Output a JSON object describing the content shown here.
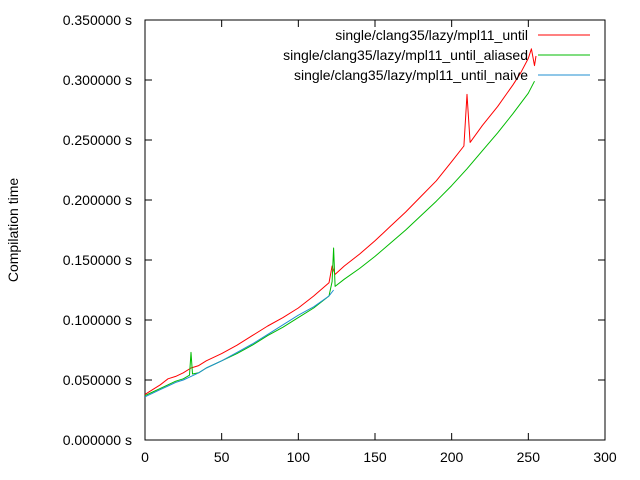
{
  "chart_data": {
    "type": "line",
    "title": "",
    "xlabel": "",
    "ylabel": "Compilation time",
    "xlim": [
      0,
      300
    ],
    "ylim": [
      0,
      0.35
    ],
    "grid": false,
    "legend_position": "top-right",
    "x_ticks": [
      "0",
      "50",
      "100",
      "150",
      "200",
      "250",
      "300"
    ],
    "y_ticks": [
      "0.000000 s",
      "0.050000 s",
      "0.100000 s",
      "0.150000 s",
      "0.200000 s",
      "0.250000 s",
      "0.300000 s",
      "0.350000 s"
    ],
    "series": [
      {
        "name": "single/clang35/lazy/mpl11_until",
        "color": "#ff0000",
        "points": [
          [
            0,
            0.038
          ],
          [
            5,
            0.042
          ],
          [
            10,
            0.046
          ],
          [
            15,
            0.051
          ],
          [
            20,
            0.053
          ],
          [
            25,
            0.056
          ],
          [
            30,
            0.06
          ],
          [
            35,
            0.062
          ],
          [
            40,
            0.066
          ],
          [
            50,
            0.072
          ],
          [
            60,
            0.079
          ],
          [
            70,
            0.087
          ],
          [
            80,
            0.095
          ],
          [
            90,
            0.102
          ],
          [
            100,
            0.11
          ],
          [
            110,
            0.12
          ],
          [
            120,
            0.131
          ],
          [
            122,
            0.145
          ],
          [
            124,
            0.138
          ],
          [
            130,
            0.145
          ],
          [
            140,
            0.155
          ],
          [
            150,
            0.166
          ],
          [
            160,
            0.178
          ],
          [
            170,
            0.19
          ],
          [
            180,
            0.203
          ],
          [
            190,
            0.216
          ],
          [
            200,
            0.232
          ],
          [
            208,
            0.245
          ],
          [
            210,
            0.288
          ],
          [
            212,
            0.248
          ],
          [
            220,
            0.262
          ],
          [
            230,
            0.278
          ],
          [
            240,
            0.296
          ],
          [
            245,
            0.306
          ],
          [
            250,
            0.318
          ],
          [
            252,
            0.326
          ],
          [
            254,
            0.312
          ],
          [
            255,
            0.32
          ]
        ]
      },
      {
        "name": "single/clang35/lazy/mpl11_until_aliased",
        "color": "#00bb00",
        "points": [
          [
            0,
            0.037
          ],
          [
            5,
            0.04
          ],
          [
            10,
            0.043
          ],
          [
            15,
            0.046
          ],
          [
            20,
            0.049
          ],
          [
            25,
            0.051
          ],
          [
            29,
            0.054
          ],
          [
            30,
            0.073
          ],
          [
            31,
            0.055
          ],
          [
            35,
            0.056
          ],
          [
            40,
            0.06
          ],
          [
            50,
            0.066
          ],
          [
            60,
            0.072
          ],
          [
            70,
            0.079
          ],
          [
            80,
            0.087
          ],
          [
            90,
            0.094
          ],
          [
            100,
            0.102
          ],
          [
            110,
            0.11
          ],
          [
            120,
            0.12
          ],
          [
            122,
            0.132
          ],
          [
            123,
            0.16
          ],
          [
            124,
            0.128
          ],
          [
            130,
            0.134
          ],
          [
            140,
            0.143
          ],
          [
            150,
            0.153
          ],
          [
            160,
            0.164
          ],
          [
            170,
            0.175
          ],
          [
            180,
            0.187
          ],
          [
            190,
            0.199
          ],
          [
            200,
            0.212
          ],
          [
            210,
            0.226
          ],
          [
            220,
            0.241
          ],
          [
            230,
            0.256
          ],
          [
            240,
            0.272
          ],
          [
            250,
            0.289
          ],
          [
            254,
            0.299
          ]
        ]
      },
      {
        "name": "single/clang35/lazy/mpl11_until_naive",
        "color": "#1f8fd0",
        "points": [
          [
            0,
            0.036
          ],
          [
            5,
            0.039
          ],
          [
            10,
            0.042
          ],
          [
            15,
            0.045
          ],
          [
            20,
            0.048
          ],
          [
            25,
            0.05
          ],
          [
            30,
            0.053
          ],
          [
            35,
            0.056
          ],
          [
            40,
            0.06
          ],
          [
            50,
            0.066
          ],
          [
            60,
            0.073
          ],
          [
            70,
            0.08
          ],
          [
            80,
            0.088
          ],
          [
            90,
            0.096
          ],
          [
            100,
            0.104
          ],
          [
            110,
            0.111
          ],
          [
            120,
            0.12
          ],
          [
            123,
            0.125
          ]
        ]
      }
    ]
  }
}
